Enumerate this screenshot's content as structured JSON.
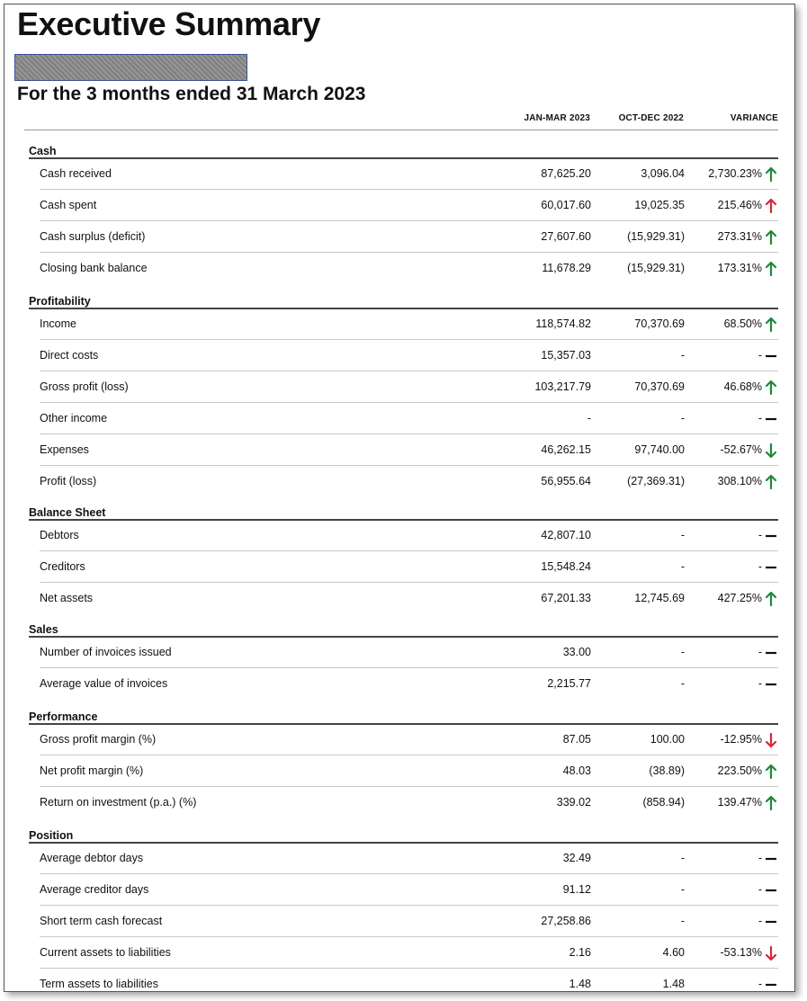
{
  "report": {
    "title": "Executive Summary",
    "period": "For the 3 months ended 31 March 2023",
    "columns": [
      "JAN-MAR 2023",
      "OCT-DEC 2022",
      "VARIANCE"
    ]
  },
  "colors": {
    "up": "#1f8a3b",
    "down": "#d42a3b",
    "neutral": "#111111"
  },
  "sections": [
    {
      "name": "Cash",
      "rows": [
        {
          "label": "Cash received",
          "current": "87,625.20",
          "previous": "3,096.04",
          "variance": "2,730.23%",
          "trend": "up",
          "color": "up"
        },
        {
          "label": "Cash spent",
          "current": "60,017.60",
          "previous": "19,025.35",
          "variance": "215.46%",
          "trend": "up",
          "color": "down"
        },
        {
          "label": "Cash surplus (deficit)",
          "current": "27,607.60",
          "previous": "(15,929.31)",
          "variance": "273.31%",
          "trend": "up",
          "color": "up"
        },
        {
          "label": "Closing bank balance",
          "current": "11,678.29",
          "previous": "(15,929.31)",
          "variance": "173.31%",
          "trend": "up",
          "color": "up"
        }
      ]
    },
    {
      "name": "Profitability",
      "rows": [
        {
          "label": "Income",
          "current": "118,574.82",
          "previous": "70,370.69",
          "variance": "68.50%",
          "trend": "up",
          "color": "up"
        },
        {
          "label": "Direct costs",
          "current": "15,357.03",
          "previous": "-",
          "variance": "-",
          "trend": "flat",
          "color": "neutral"
        },
        {
          "label": "Gross profit (loss)",
          "current": "103,217.79",
          "previous": "70,370.69",
          "variance": "46.68%",
          "trend": "up",
          "color": "up"
        },
        {
          "label": "Other income",
          "current": "-",
          "previous": "-",
          "variance": "-",
          "trend": "flat",
          "color": "neutral"
        },
        {
          "label": "Expenses",
          "current": "46,262.15",
          "previous": "97,740.00",
          "variance": "-52.67%",
          "trend": "down",
          "color": "up"
        },
        {
          "label": "Profit (loss)",
          "current": "56,955.64",
          "previous": "(27,369.31)",
          "variance": "308.10%",
          "trend": "up",
          "color": "up"
        }
      ]
    },
    {
      "name": "Balance Sheet",
      "rows": [
        {
          "label": "Debtors",
          "current": "42,807.10",
          "previous": "-",
          "variance": "-",
          "trend": "flat",
          "color": "neutral"
        },
        {
          "label": "Creditors",
          "current": "15,548.24",
          "previous": "-",
          "variance": "-",
          "trend": "flat",
          "color": "neutral"
        },
        {
          "label": "Net assets",
          "current": "67,201.33",
          "previous": "12,745.69",
          "variance": "427.25%",
          "trend": "up",
          "color": "up"
        }
      ]
    },
    {
      "name": "Sales",
      "rows": [
        {
          "label": "Number of invoices issued",
          "current": "33.00",
          "previous": "-",
          "variance": "-",
          "trend": "flat",
          "color": "neutral"
        },
        {
          "label": "Average value of invoices",
          "current": "2,215.77",
          "previous": "-",
          "variance": "-",
          "trend": "flat",
          "color": "neutral"
        }
      ]
    },
    {
      "name": "Performance",
      "rows": [
        {
          "label": "Gross profit margin (%)",
          "current": "87.05",
          "previous": "100.00",
          "variance": "-12.95%",
          "trend": "down",
          "color": "down"
        },
        {
          "label": "Net profit margin (%)",
          "current": "48.03",
          "previous": "(38.89)",
          "variance": "223.50%",
          "trend": "up",
          "color": "up"
        },
        {
          "label": "Return on investment (p.a.) (%)",
          "current": "339.02",
          "previous": "(858.94)",
          "variance": "139.47%",
          "trend": "up",
          "color": "up"
        }
      ]
    },
    {
      "name": "Position",
      "rows": [
        {
          "label": "Average debtor days",
          "current": "32.49",
          "previous": "-",
          "variance": "-",
          "trend": "flat",
          "color": "neutral"
        },
        {
          "label": "Average creditor days",
          "current": "91.12",
          "previous": "-",
          "variance": "-",
          "trend": "flat",
          "color": "neutral"
        },
        {
          "label": "Short term cash forecast",
          "current": "27,258.86",
          "previous": "-",
          "variance": "-",
          "trend": "flat",
          "color": "neutral"
        },
        {
          "label": "Current assets to liabilities",
          "current": "2.16",
          "previous": "4.60",
          "variance": "-53.13%",
          "trend": "down",
          "color": "down"
        },
        {
          "label": "Term assets to liabilities",
          "current": "1.48",
          "previous": "1.48",
          "variance": "-",
          "trend": "flat",
          "color": "neutral"
        }
      ]
    }
  ]
}
